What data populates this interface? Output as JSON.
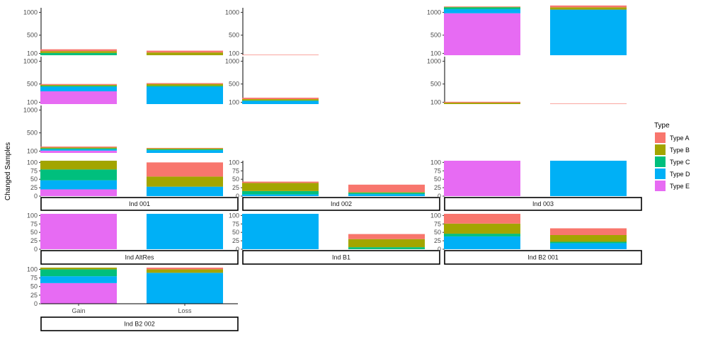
{
  "chart_data": {
    "type": "bar",
    "stacked": true,
    "facets": "rows by upper panel grid and lower strip grid",
    "ylabel": "Changed Samples",
    "xlabel": "",
    "categories": [
      "Gain",
      "Loss"
    ],
    "legend": {
      "title": "Type",
      "placement": "right",
      "entries": [
        {
          "name": "Type A",
          "color": "#F8766D"
        },
        {
          "name": "Type B",
          "color": "#A3A500"
        },
        {
          "name": "Type C",
          "color": "#00BF7D"
        },
        {
          "name": "Type D",
          "color": "#00B0F6"
        },
        {
          "name": "Type E",
          "color": "#E76BF3"
        }
      ]
    },
    "stack_order": [
      "Type E",
      "Type D",
      "Type C",
      "Type B",
      "Type A"
    ],
    "upper_axis": {
      "ylim": [
        0,
        1100
      ],
      "ticks": [
        100,
        500,
        1000
      ]
    },
    "lower_axis": {
      "ylim": [
        0,
        105
      ],
      "ticks": [
        0,
        25,
        50,
        75,
        100
      ]
    },
    "upper_panels": [
      {
        "row": 0,
        "col": 0,
        "bars": [
          {
            "category": "Gain",
            "values": {
              "Type E": 0,
              "Type D": 0,
              "Type C": 50,
              "Type B": 40,
              "Type A": 40
            }
          },
          {
            "category": "Loss",
            "values": {
              "Type E": 0,
              "Type D": 0,
              "Type C": 0,
              "Type B": 60,
              "Type A": 40
            }
          }
        ]
      },
      {
        "row": 0,
        "col": 1,
        "bars": [
          {
            "category": "Gain",
            "values": {
              "Type E": 0,
              "Type D": 0,
              "Type C": 0,
              "Type B": 0,
              "Type A": 10
            }
          }
        ]
      },
      {
        "row": 0,
        "col": 2,
        "bars": [
          {
            "category": "Gain",
            "values": {
              "Type E": 920,
              "Type D": 90,
              "Type C": 40,
              "Type B": 10,
              "Type A": 10
            }
          },
          {
            "category": "Loss",
            "values": {
              "Type E": 0,
              "Type D": 1000,
              "Type C": 0,
              "Type B": 50,
              "Type A": 40
            }
          }
        ]
      },
      {
        "row": 1,
        "col": 0,
        "bars": [
          {
            "category": "Gain",
            "values": {
              "Type E": 280,
              "Type D": 100,
              "Type C": 20,
              "Type B": 20,
              "Type A": 20
            }
          },
          {
            "category": "Loss",
            "values": {
              "Type E": 0,
              "Type D": 380,
              "Type C": 20,
              "Type B": 40,
              "Type A": 20
            }
          }
        ]
      },
      {
        "row": 1,
        "col": 1,
        "bars": [
          {
            "category": "Gain",
            "values": {
              "Type E": 0,
              "Type D": 70,
              "Type C": 10,
              "Type B": 30,
              "Type A": 30
            }
          }
        ]
      },
      {
        "row": 1,
        "col": 2,
        "bars": [
          {
            "category": "Gain",
            "values": {
              "Type E": 0,
              "Type D": 0,
              "Type C": 0,
              "Type B": 30,
              "Type A": 20
            }
          },
          {
            "category": "Loss",
            "values": {
              "Type E": 0,
              "Type D": 0,
              "Type C": 0,
              "Type B": 0,
              "Type A": 10
            }
          }
        ]
      },
      {
        "row": 2,
        "col": 0,
        "bars": [
          {
            "category": "Gain",
            "values": {
              "Type E": 50,
              "Type D": 30,
              "Type C": 20,
              "Type B": 20,
              "Type A": 20
            }
          },
          {
            "category": "Loss",
            "values": {
              "Type E": 0,
              "Type D": 60,
              "Type C": 20,
              "Type B": 20,
              "Type A": 10
            }
          }
        ]
      }
    ],
    "lower_panels": [
      {
        "row": 0,
        "col": 0,
        "strip": "Ind 001",
        "bars": [
          {
            "category": "Gain",
            "values": {
              "Type E": 20,
              "Type D": 27,
              "Type C": 32,
              "Type B": 26,
              "Type A": 0
            }
          },
          {
            "category": "Loss",
            "values": {
              "Type E": 0,
              "Type D": 28,
              "Type C": 0,
              "Type B": 30,
              "Type A": 42
            }
          }
        ]
      },
      {
        "row": 0,
        "col": 1,
        "strip": "Ind 002",
        "bars": [
          {
            "category": "Gain",
            "values": {
              "Type E": 0,
              "Type D": 5,
              "Type C": 10,
              "Type B": 24,
              "Type A": 4
            }
          },
          {
            "category": "Loss",
            "values": {
              "Type E": 0,
              "Type D": 6,
              "Type C": 4,
              "Type B": 2,
              "Type A": 22
            }
          }
        ]
      },
      {
        "row": 0,
        "col": 2,
        "strip": "Ind 003",
        "bars": [
          {
            "category": "Gain",
            "values": {
              "Type E": 105,
              "Type D": 0,
              "Type C": 0,
              "Type B": 0,
              "Type A": 0
            }
          },
          {
            "category": "Loss",
            "values": {
              "Type E": 0,
              "Type D": 105,
              "Type C": 0,
              "Type B": 0,
              "Type A": 0
            }
          }
        ]
      },
      {
        "row": 1,
        "col": 0,
        "strip": "Ind AltRes",
        "bars": [
          {
            "category": "Gain",
            "values": {
              "Type E": 105,
              "Type D": 0,
              "Type C": 0,
              "Type B": 0,
              "Type A": 0
            }
          },
          {
            "category": "Loss",
            "values": {
              "Type E": 0,
              "Type D": 105,
              "Type C": 0,
              "Type B": 0,
              "Type A": 0
            }
          }
        ]
      },
      {
        "row": 1,
        "col": 1,
        "strip": "Ind B1",
        "bars": [
          {
            "category": "Gain",
            "values": {
              "Type E": 0,
              "Type D": 105,
              "Type C": 0,
              "Type B": 0,
              "Type A": 0
            }
          },
          {
            "category": "Loss",
            "values": {
              "Type E": 0,
              "Type D": 0,
              "Type C": 6,
              "Type B": 24,
              "Type A": 15
            }
          }
        ]
      },
      {
        "row": 1,
        "col": 2,
        "strip": "Ind B2 001",
        "bars": [
          {
            "category": "Gain",
            "values": {
              "Type E": 0,
              "Type D": 38,
              "Type C": 8,
              "Type B": 30,
              "Type A": 29
            }
          },
          {
            "category": "Loss",
            "values": {
              "Type E": 0,
              "Type D": 18,
              "Type C": 4,
              "Type B": 20,
              "Type A": 20
            }
          }
        ]
      },
      {
        "row": 2,
        "col": 0,
        "strip": "Ind B2 002",
        "bars": [
          {
            "category": "Gain",
            "values": {
              "Type E": 60,
              "Type D": 20,
              "Type C": 20,
              "Type B": 5,
              "Type A": 0
            }
          },
          {
            "category": "Loss",
            "values": {
              "Type E": 0,
              "Type D": 90,
              "Type C": 0,
              "Type B": 10,
              "Type A": 5
            }
          }
        ]
      }
    ]
  }
}
